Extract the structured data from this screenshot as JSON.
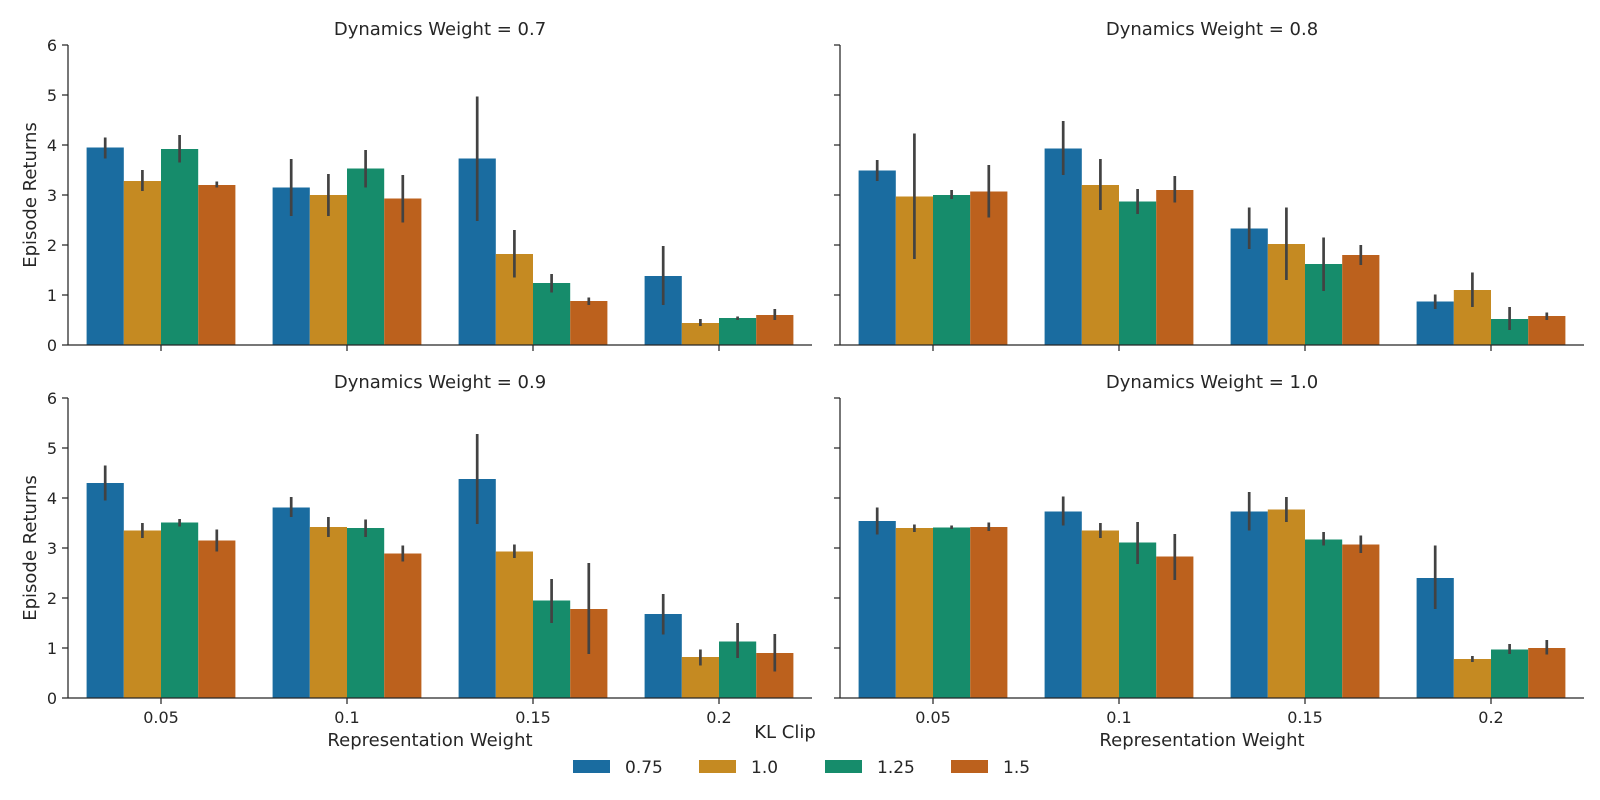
{
  "chart_data": {
    "type": "bar",
    "ylabel": "Episode Returns",
    "xlabel": "Representation Weight",
    "categories": [
      "0.05",
      "0.1",
      "0.15",
      "0.2"
    ],
    "ylim": [
      0,
      6
    ],
    "yticks": [
      "0",
      "1",
      "2",
      "3",
      "4",
      "5",
      "6"
    ],
    "legend": {
      "title": "KL Clip",
      "placement": "bottom-center",
      "entries": [
        "0.75",
        "1.0",
        "1.25",
        "1.5"
      ]
    },
    "series_colors": [
      "#1a6ca0",
      "#c58a22",
      "#168c6b",
      "#bc611d"
    ],
    "grid": false,
    "panels": [
      {
        "title": "Dynamics Weight = 0.7",
        "series": [
          {
            "name": "0.75",
            "values": [
              3.95,
              3.15,
              3.73,
              1.38
            ],
            "err_low": [
              3.73,
              2.58,
              2.48,
              0.8
            ],
            "err_high": [
              4.15,
              3.72,
              4.97,
              1.98
            ]
          },
          {
            "name": "1.0",
            "values": [
              3.28,
              3.0,
              1.82,
              0.44
            ],
            "err_low": [
              3.08,
              2.58,
              1.35,
              0.38
            ],
            "err_high": [
              3.5,
              3.42,
              2.3,
              0.52
            ]
          },
          {
            "name": "1.25",
            "values": [
              3.92,
              3.53,
              1.24,
              0.54
            ],
            "err_low": [
              3.65,
              3.15,
              1.05,
              0.5
            ],
            "err_high": [
              4.2,
              3.9,
              1.42,
              0.57
            ]
          },
          {
            "name": "1.5",
            "values": [
              3.2,
              2.93,
              0.88,
              0.6
            ],
            "err_low": [
              3.15,
              2.45,
              0.8,
              0.5
            ],
            "err_high": [
              3.27,
              3.4,
              0.95,
              0.72
            ]
          }
        ]
      },
      {
        "title": "Dynamics Weight = 0.8",
        "series": [
          {
            "name": "0.75",
            "values": [
              3.49,
              3.93,
              2.33,
              0.87
            ],
            "err_low": [
              3.28,
              3.4,
              1.92,
              0.72
            ],
            "err_high": [
              3.7,
              4.48,
              2.75,
              1.01
            ]
          },
          {
            "name": "1.0",
            "values": [
              2.97,
              3.2,
              2.02,
              1.1
            ],
            "err_low": [
              1.72,
              2.7,
              1.3,
              0.76
            ],
            "err_high": [
              4.23,
              3.72,
              2.75,
              1.45
            ]
          },
          {
            "name": "1.25",
            "values": [
              3.0,
              2.87,
              1.62,
              0.52
            ],
            "err_low": [
              2.92,
              2.62,
              1.08,
              0.3
            ],
            "err_high": [
              3.1,
              3.12,
              2.15,
              0.76
            ]
          },
          {
            "name": "1.5",
            "values": [
              3.07,
              3.1,
              1.8,
              0.58
            ],
            "err_low": [
              2.55,
              2.85,
              1.6,
              0.5
            ],
            "err_high": [
              3.6,
              3.38,
              2.0,
              0.65
            ]
          }
        ]
      },
      {
        "title": "Dynamics Weight = 0.9",
        "series": [
          {
            "name": "0.75",
            "values": [
              4.3,
              3.81,
              4.38,
              1.68
            ],
            "err_low": [
              3.95,
              3.62,
              3.48,
              1.27
            ],
            "err_high": [
              4.65,
              4.02,
              5.28,
              2.08
            ]
          },
          {
            "name": "1.0",
            "values": [
              3.35,
              3.42,
              2.93,
              0.82
            ],
            "err_low": [
              3.2,
              3.22,
              2.8,
              0.65
            ],
            "err_high": [
              3.5,
              3.62,
              3.07,
              0.97
            ]
          },
          {
            "name": "1.25",
            "values": [
              3.51,
              3.4,
              1.95,
              1.13
            ],
            "err_low": [
              3.43,
              3.22,
              1.5,
              0.8
            ],
            "err_high": [
              3.58,
              3.57,
              2.38,
              1.5
            ]
          },
          {
            "name": "1.5",
            "values": [
              3.15,
              2.89,
              1.78,
              0.9
            ],
            "err_low": [
              2.93,
              2.73,
              0.88,
              0.53
            ],
            "err_high": [
              3.37,
              3.05,
              2.7,
              1.28
            ]
          }
        ]
      },
      {
        "title": "Dynamics Weight = 1.0",
        "series": [
          {
            "name": "0.75",
            "values": [
              3.54,
              3.73,
              3.73,
              2.4
            ],
            "err_low": [
              3.27,
              3.45,
              3.35,
              1.78
            ],
            "err_high": [
              3.81,
              4.03,
              4.12,
              3.05
            ]
          },
          {
            "name": "1.0",
            "values": [
              3.4,
              3.35,
              3.77,
              0.78
            ],
            "err_low": [
              3.32,
              3.2,
              3.52,
              0.72
            ],
            "err_high": [
              3.47,
              3.5,
              4.02,
              0.84
            ]
          },
          {
            "name": "1.25",
            "values": [
              3.41,
              3.11,
              3.17,
              0.97
            ],
            "err_low": [
              3.38,
              2.68,
              3.05,
              0.88
            ],
            "err_high": [
              3.45,
              3.52,
              3.32,
              1.08
            ]
          },
          {
            "name": "1.5",
            "values": [
              3.42,
              2.83,
              3.07,
              1.0
            ],
            "err_low": [
              3.34,
              2.36,
              2.9,
              0.87
            ],
            "err_high": [
              3.51,
              3.28,
              3.25,
              1.16
            ]
          }
        ]
      }
    ]
  }
}
